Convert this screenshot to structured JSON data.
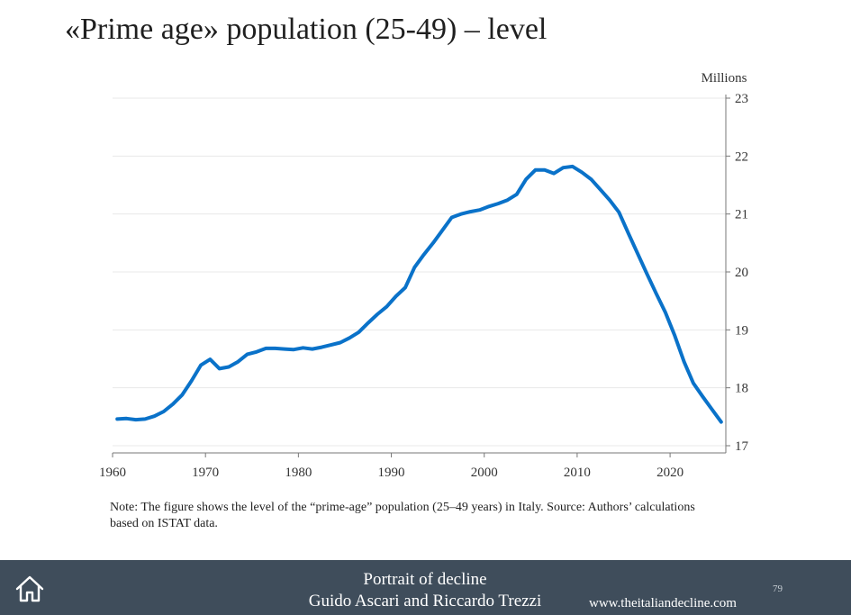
{
  "title": "«Prime age» population (25-49) – level",
  "note": "Note: The figure shows the level of the “prime-age” population (25–49 years) in Italy. Source: Authors’ calculations based on ISTAT data.",
  "footer": {
    "line1": "Portrait of decline",
    "line2": "Guido Ascari and Riccardo Trezzi",
    "url": "www.theitaliandecline.com",
    "page_number": "79"
  },
  "colors": {
    "line": "#0a72c9",
    "footer_bg": "#3f4d5b",
    "grid": "#e8e8e8"
  },
  "chart_data": {
    "type": "line",
    "unit_label": "Millions",
    "xlim": [
      1960,
      2026
    ],
    "ylim": [
      17,
      23
    ],
    "x_ticks": [
      1960,
      1970,
      1980,
      1990,
      2000,
      2010,
      2020
    ],
    "y_ticks": [
      17,
      18,
      19,
      20,
      21,
      22,
      23
    ],
    "grid": "horizontal",
    "y_axis_position": "right",
    "series": [
      {
        "x": [
          1960.5,
          1961.5,
          1962.5,
          1963.5,
          1964.5,
          1965.5,
          1966.5,
          1967.5,
          1968.5,
          1969.5,
          1970.5,
          1971.5,
          1972.5,
          1973.5,
          1974.5,
          1975.5,
          1976.5,
          1977.5,
          1978.5,
          1979.5,
          1980.5,
          1981.5,
          1982.5,
          1983.5,
          1984.5,
          1985.5,
          1986.5,
          1987.5,
          1988.5,
          1989.5,
          1990.5,
          1991.5,
          1992.5,
          1993.5,
          1994.5,
          1995.5,
          1996.5,
          1997.5,
          1998.5,
          1999.5,
          2000.5,
          2001.5,
          2002.5,
          2003.5,
          2004.5,
          2005.5,
          2006.5,
          2007.5,
          2008.5,
          2009.5,
          2010.5,
          2011.5,
          2012.5,
          2013.5,
          2014.5,
          2015.5,
          2016.5,
          2017.5,
          2018.5,
          2019.5,
          2020.5,
          2021.5,
          2022.5,
          2023.5,
          2024.5,
          2025.5
        ],
        "values": [
          17.46,
          17.47,
          17.45,
          17.46,
          17.51,
          17.59,
          17.72,
          17.88,
          18.12,
          18.39,
          18.49,
          18.33,
          18.36,
          18.45,
          18.58,
          18.62,
          18.68,
          18.68,
          18.67,
          18.66,
          18.69,
          18.67,
          18.7,
          18.74,
          18.78,
          18.86,
          18.96,
          19.12,
          19.27,
          19.4,
          19.58,
          19.73,
          20.08,
          20.3,
          20.5,
          20.72,
          20.94,
          21.0,
          21.04,
          21.07,
          21.13,
          21.18,
          21.24,
          21.34,
          21.6,
          21.76,
          21.76,
          21.7,
          21.8,
          21.82,
          21.72,
          21.6,
          21.42,
          21.24,
          21.03,
          20.67,
          20.32,
          19.97,
          19.63,
          19.3,
          18.9,
          18.45,
          18.08,
          17.85,
          17.63,
          17.41
        ]
      }
    ]
  }
}
